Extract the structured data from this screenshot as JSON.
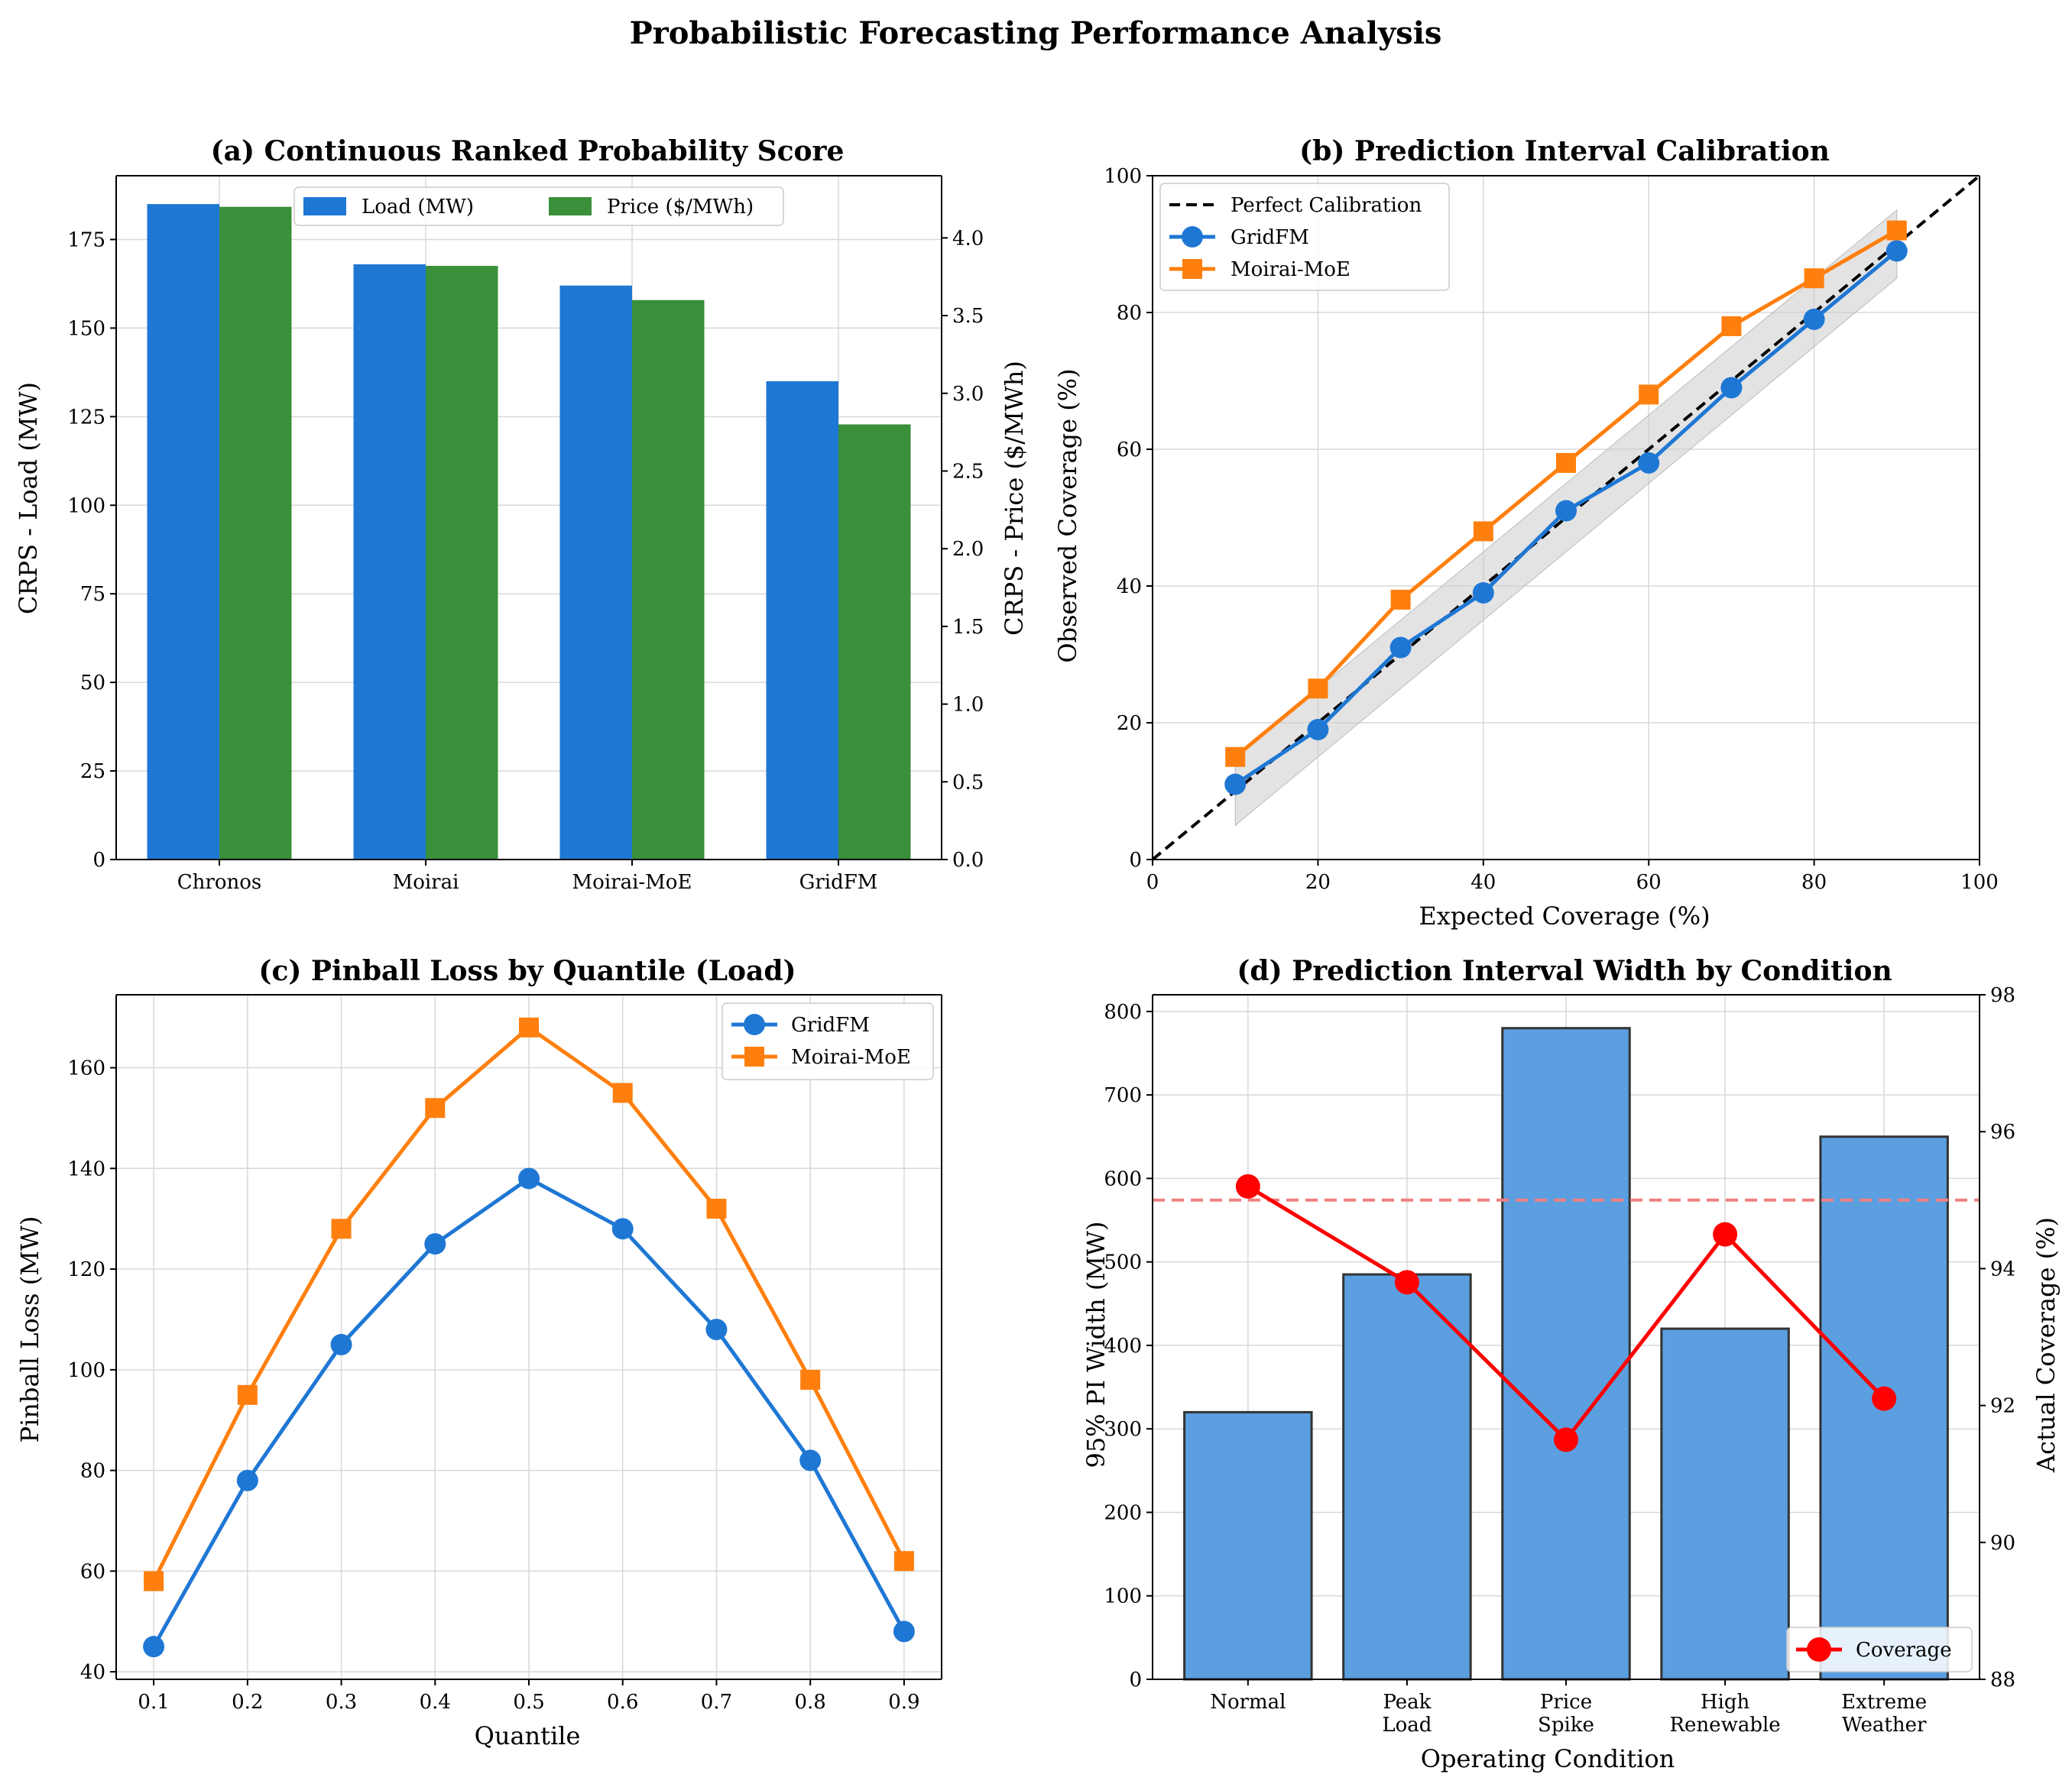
{
  "figure_title": "Probabilistic Forecasting Performance Analysis",
  "chart_data": [
    {
      "panel": "a",
      "type": "bar",
      "title": "(a) Continuous Ranked Probability Score",
      "categories": [
        "Chronos",
        "Moirai",
        "Moirai-MoE",
        "GridFM"
      ],
      "series": [
        {
          "name": "Load (MW)",
          "axis": "left",
          "color": "#1f77d4",
          "values": [
            185,
            168,
            162,
            135
          ]
        },
        {
          "name": "Price ($/MWh)",
          "axis": "right",
          "color": "#3a8f3a",
          "values": [
            4.2,
            3.82,
            3.6,
            2.8
          ]
        }
      ],
      "ylabel": "CRPS - Load (MW)",
      "ylabel_color": "#1f77d4",
      "y2label": "CRPS - Price ($/MWh)",
      "y2label_color": "#2e8b2e",
      "ylim": [
        0,
        193
      ],
      "y2lim": [
        0,
        4.4
      ],
      "yticks": [
        0,
        25,
        50,
        75,
        100,
        125,
        150,
        175
      ],
      "y2ticks": [
        0.0,
        0.5,
        1.0,
        1.5,
        2.0,
        2.5,
        3.0,
        3.5,
        4.0
      ],
      "y2tick_labels": [
        "0.0",
        "0.5",
        "1.0",
        "1.5",
        "2.0",
        "2.5",
        "3.0",
        "3.5",
        "4.0"
      ],
      "legend": "top-center",
      "grid": true
    },
    {
      "panel": "b",
      "type": "line",
      "title": "(b) Prediction Interval Calibration",
      "x": [
        10,
        20,
        30,
        40,
        50,
        60,
        70,
        80,
        90
      ],
      "series": [
        {
          "name": "Perfect Calibration",
          "style": "dashed",
          "color": "#000000",
          "x": [
            0,
            100
          ],
          "values": [
            0,
            100
          ]
        },
        {
          "name": "GridFM",
          "marker": "circle",
          "color": "#1f77d4",
          "values": [
            11,
            19,
            31,
            39,
            51,
            58,
            69,
            79,
            89
          ]
        },
        {
          "name": "Moirai-MoE",
          "marker": "square",
          "color": "#ff7f0e",
          "values": [
            15,
            25,
            38,
            48,
            58,
            68,
            78,
            85,
            92
          ]
        }
      ],
      "band": {
        "lower_offset": -5,
        "upper_offset": 5,
        "color": "#cccccc"
      },
      "xlabel": "Expected Coverage (%)",
      "ylabel": "Observed Coverage (%)",
      "xlim": [
        0,
        100
      ],
      "ylim": [
        0,
        100
      ],
      "xticks": [
        0,
        20,
        40,
        60,
        80,
        100
      ],
      "yticks": [
        0,
        20,
        40,
        60,
        80,
        100
      ],
      "legend": "top-left",
      "grid": true
    },
    {
      "panel": "c",
      "type": "line",
      "title": "(c) Pinball Loss by Quantile (Load)",
      "x": [
        0.1,
        0.2,
        0.3,
        0.4,
        0.5,
        0.6,
        0.7,
        0.8,
        0.9
      ],
      "xtick_labels": [
        "0.1",
        "0.2",
        "0.3",
        "0.4",
        "0.5",
        "0.6",
        "0.7",
        "0.8",
        "0.9"
      ],
      "series": [
        {
          "name": "GridFM",
          "marker": "circle",
          "color": "#1f77d4",
          "values": [
            45,
            78,
            105,
            125,
            138,
            128,
            108,
            82,
            48
          ]
        },
        {
          "name": "Moirai-MoE",
          "marker": "square",
          "color": "#ff7f0e",
          "values": [
            58,
            95,
            128,
            152,
            168,
            155,
            132,
            98,
            62
          ]
        }
      ],
      "xlabel": "Quantile",
      "ylabel": "Pinball Loss (MW)",
      "xlim": [
        0.06,
        0.94
      ],
      "ylim": [
        38.5,
        174.5
      ],
      "yticks": [
        40,
        60,
        80,
        100,
        120,
        140,
        160
      ],
      "legend": "top-right",
      "grid": true
    },
    {
      "panel": "d",
      "type": "bar",
      "title": "(d) Prediction Interval Width by Condition",
      "categories": [
        [
          "Normal"
        ],
        [
          "Peak",
          "Load"
        ],
        [
          "Price",
          "Spike"
        ],
        [
          "High",
          "Renewable"
        ],
        [
          "Extreme",
          "Weather"
        ]
      ],
      "series": [
        {
          "name": "95% PI Width",
          "axis": "left",
          "color": "#5b9fe0",
          "values": [
            320,
            485,
            780,
            420,
            650
          ]
        },
        {
          "name": "Coverage",
          "axis": "right",
          "marker": "circle",
          "color": "#ff0000",
          "values": [
            95.2,
            93.8,
            91.5,
            94.5,
            92.1
          ]
        }
      ],
      "reference_line": {
        "axis": "right",
        "value": 95,
        "color": "#f08080",
        "style": "dashed"
      },
      "xlabel": "Operating Condition",
      "ylabel": "95% PI Width (MW)",
      "ylabel_color": "#1f77d4",
      "y2label": "Actual Coverage (%)",
      "y2label_color": "#ff0000",
      "ylim": [
        0,
        820
      ],
      "y2lim": [
        88,
        98
      ],
      "yticks": [
        0,
        100,
        200,
        300,
        400,
        500,
        600,
        700,
        800
      ],
      "y2ticks": [
        88,
        90,
        92,
        94,
        96,
        98
      ],
      "legend": "bottom-right",
      "grid": true
    }
  ]
}
